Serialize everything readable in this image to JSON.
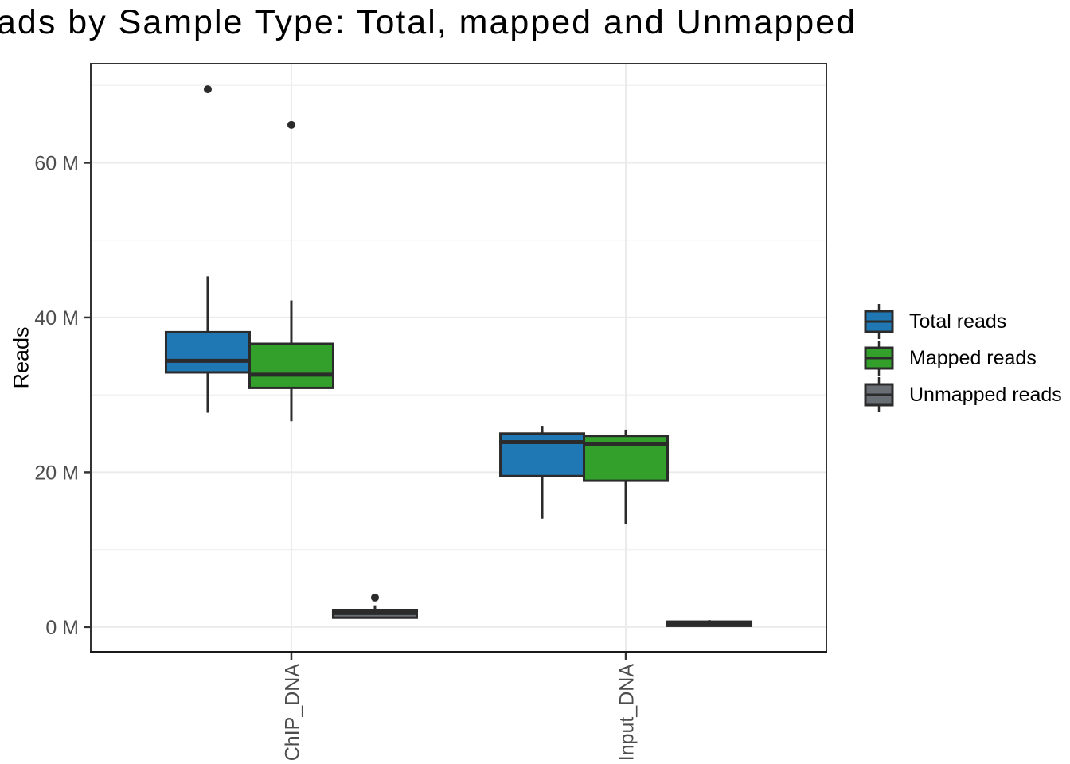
{
  "chart_data": {
    "type": "boxplot",
    "title": "ads by Sample Type: Total, mapped and Unmapped",
    "title_note": "title is clipped at left edge of image",
    "ylabel": "Reads",
    "xlabel": "",
    "categories": [
      "ChIP_DNA",
      "Input_DNA"
    ],
    "y_axis": {
      "unit": "M reads (millions)",
      "lim": [
        -3.2,
        72.8
      ],
      "major_ticks": [
        0,
        20,
        40,
        60
      ],
      "major_tick_labels": [
        "0 M",
        "20 M",
        "40 M",
        "60 M"
      ],
      "minor_ticks": [
        10,
        30,
        50,
        70
      ]
    },
    "grid": true,
    "legend_position": "right",
    "series": [
      {
        "name": "Total reads",
        "fill": "#1F78B4",
        "boxes": [
          {
            "category": "ChIP_DNA",
            "whisker_low": 27.7,
            "q1": 32.9,
            "median": 34.4,
            "q3": 38.1,
            "whisker_high": 45.3,
            "outliers": [
              69.5
            ]
          },
          {
            "category": "Input_DNA",
            "whisker_low": 14.0,
            "q1": 19.5,
            "median": 23.9,
            "q3": 25.0,
            "whisker_high": 26.0,
            "outliers": []
          }
        ]
      },
      {
        "name": "Mapped reads",
        "fill": "#33A02C",
        "boxes": [
          {
            "category": "ChIP_DNA",
            "whisker_low": 26.6,
            "q1": 30.9,
            "median": 32.6,
            "q3": 36.6,
            "whisker_high": 42.2,
            "outliers": [
              64.9
            ]
          },
          {
            "category": "Input_DNA",
            "whisker_low": 13.3,
            "q1": 18.9,
            "median": 23.6,
            "q3": 24.7,
            "whisker_high": 25.5,
            "outliers": []
          }
        ]
      },
      {
        "name": "Unmapped reads",
        "fill": "#696E74",
        "boxes": [
          {
            "category": "ChIP_DNA",
            "whisker_low": 1.2,
            "q1": 1.2,
            "median": 1.8,
            "q3": 2.2,
            "whisker_high": 2.8,
            "outliers": [
              3.8
            ]
          },
          {
            "category": "Input_DNA",
            "whisker_low": 0.1,
            "q1": 0.15,
            "median": 0.4,
            "q3": 0.7,
            "whisker_high": 0.9,
            "outliers": []
          }
        ]
      }
    ]
  },
  "legend": {
    "items": [
      {
        "label": "Total reads",
        "color": "#1F78B4"
      },
      {
        "label": "Mapped reads",
        "color": "#33A02C"
      },
      {
        "label": "Unmapped reads",
        "color": "#696E74"
      }
    ]
  },
  "colors": {
    "background": "#FFFFFF",
    "box_outline": "#2B2B2B",
    "outlier_dot": "#2B2B2B",
    "grid_major": "#EBEBEB",
    "grid_minor": "#F1F1F1",
    "panel_border": "#333333",
    "axis_line": "#1A1A1A",
    "tick_mark": "#333333",
    "tick_label": "#4D4D4D",
    "title_text": "#000000"
  }
}
